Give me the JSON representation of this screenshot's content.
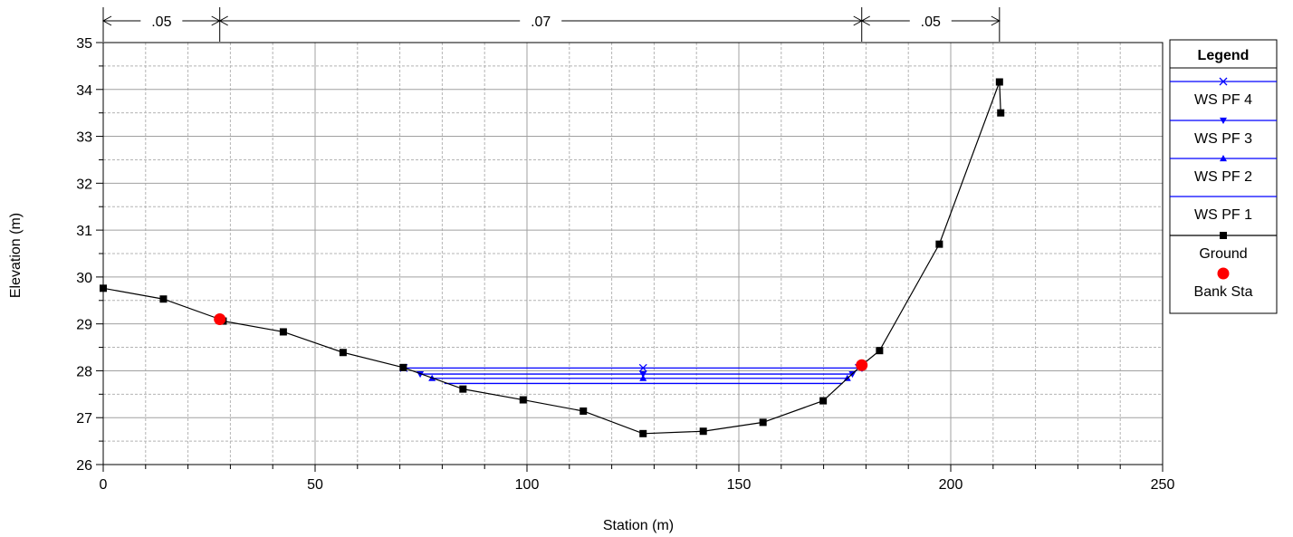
{
  "chart_data": {
    "type": "line",
    "xlabel": "Station (m)",
    "ylabel": "Elevation (m)",
    "xlim": [
      0,
      250
    ],
    "ylim": [
      26,
      35
    ],
    "grid": true,
    "x_ticks": [
      "0",
      "50",
      "100",
      "150",
      "200",
      "250"
    ],
    "y_ticks": [
      "26",
      "27",
      "28",
      "29",
      "30",
      "31",
      "32",
      "33",
      "34",
      "35"
    ],
    "mannings_n": [
      {
        "label": ".05",
        "from": 0,
        "to": 27.5
      },
      {
        "label": ".07",
        "from": 27.5,
        "to": 179
      },
      {
        "label": ".05",
        "from": 179,
        "to": 211.5
      }
    ],
    "legend": {
      "title": "Legend",
      "position": "right",
      "entries": [
        "WS PF 4",
        "WS PF 3",
        "WS PF 2",
        "WS PF 1",
        "Ground",
        "Bank Sta"
      ]
    },
    "series": [
      {
        "name": "Ground",
        "color": "#000000",
        "marker": "square",
        "points": [
          [
            0,
            29.76
          ],
          [
            14.2,
            29.53
          ],
          [
            27.5,
            29.1
          ],
          [
            28.3,
            29.06
          ],
          [
            42.5,
            28.83
          ],
          [
            56.6,
            28.39
          ],
          [
            70.8,
            28.07
          ],
          [
            84.9,
            27.61
          ],
          [
            99.1,
            27.38
          ],
          [
            113.3,
            27.14
          ],
          [
            127.4,
            26.66
          ],
          [
            141.6,
            26.71
          ],
          [
            155.7,
            26.9
          ],
          [
            169.9,
            27.36
          ],
          [
            179,
            28.12
          ],
          [
            183.2,
            28.43
          ],
          [
            197.3,
            30.7
          ],
          [
            211.5,
            34.16
          ],
          [
            211.8,
            33.5
          ]
        ]
      },
      {
        "name": "WS PF 4",
        "color": "#0000ff",
        "marker": "x",
        "x": [
          70.9,
          178.3
        ],
        "elevation": 28.06
      },
      {
        "name": "WS PF 3",
        "color": "#0000ff",
        "marker": "triangle-down",
        "x": [
          74.8,
          176.8
        ],
        "elevation": 27.93
      },
      {
        "name": "WS PF 2",
        "color": "#0000ff",
        "marker": "triangle-up",
        "x": [
          77.6,
          175.6
        ],
        "elevation": 27.84
      },
      {
        "name": "WS PF 1",
        "color": "#0000ff",
        "marker": "none",
        "x": [
          80.5,
          174.5
        ],
        "elevation": 27.73
      },
      {
        "name": "Bank Sta",
        "color": "#ff0000",
        "marker": "circle",
        "points": [
          [
            27.5,
            29.1
          ],
          [
            179,
            28.12
          ]
        ]
      }
    ]
  }
}
